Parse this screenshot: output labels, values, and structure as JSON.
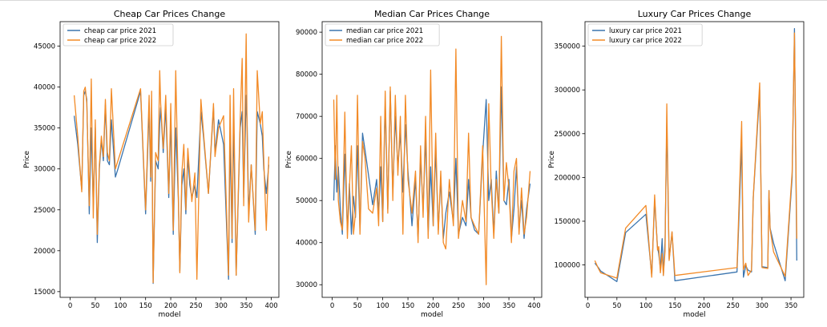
{
  "figure": {
    "colors": {
      "series_2021": "#3a74ae",
      "series_2022": "#f28a26",
      "axis": "#000000",
      "legend_border": "#cccccc"
    },
    "font": "DejaVu Sans"
  },
  "chart_data": [
    {
      "type": "line",
      "title": "Cheap Car Prices Change",
      "xlabel": "model",
      "ylabel": "Price",
      "xlim": [
        -20,
        415
      ],
      "ylim": [
        14300,
        48000
      ],
      "xticks": [
        0,
        50,
        100,
        150,
        200,
        250,
        300,
        350,
        400
      ],
      "yticks": [
        15000,
        20000,
        25000,
        30000,
        35000,
        40000,
        45000
      ],
      "legend": "top-left",
      "grid": false,
      "series": [
        {
          "name": "cheap car price 2021",
          "color": "#3a74ae",
          "x": [
            8,
            15,
            23,
            27,
            30,
            33,
            38,
            42,
            46,
            50,
            54,
            58,
            62,
            66,
            70,
            74,
            78,
            82,
            90,
            95,
            140,
            150,
            157,
            160,
            162,
            165,
            170,
            175,
            178,
            180,
            185,
            190,
            196,
            200,
            205,
            210,
            215,
            218,
            222,
            226,
            230,
            234,
            238,
            242,
            248,
            252,
            260,
            265,
            275,
            285,
            288,
            295,
            305,
            315,
            318,
            322,
            325,
            330,
            338,
            342,
            345,
            350,
            352,
            355,
            360,
            368,
            372,
            378,
            382,
            385,
            390,
            395
          ],
          "y": [
            36500,
            33000,
            27500,
            39000,
            39500,
            38500,
            24500,
            35000,
            25500,
            35000,
            21000,
            30000,
            33500,
            31000,
            37800,
            31000,
            30500,
            36000,
            29000,
            30000,
            39500,
            24500,
            37500,
            28500,
            38500,
            16000,
            31000,
            30000,
            35500,
            37500,
            32000,
            37500,
            26500,
            36000,
            22000,
            35000,
            26500,
            17500,
            28000,
            30000,
            24500,
            31500,
            28000,
            26500,
            28000,
            26500,
            37000,
            34000,
            27000,
            37500,
            32000,
            36000,
            33000,
            16500,
            34000,
            21000,
            36000,
            17000,
            35000,
            37000,
            26500,
            39000,
            35000,
            24500,
            30500,
            22000,
            37000,
            35500,
            34000,
            30000,
            27000,
            30500
          ]
        },
        {
          "name": "cheap car price 2022",
          "color": "#f28a26",
          "x": [
            8,
            15,
            23,
            27,
            30,
            33,
            38,
            42,
            46,
            50,
            54,
            58,
            62,
            66,
            70,
            74,
            78,
            82,
            90,
            95,
            140,
            150,
            157,
            160,
            162,
            165,
            170,
            175,
            178,
            180,
            185,
            190,
            196,
            200,
            205,
            210,
            215,
            218,
            222,
            226,
            230,
            234,
            238,
            242,
            248,
            252,
            260,
            265,
            275,
            285,
            288,
            295,
            305,
            315,
            318,
            322,
            325,
            330,
            338,
            342,
            345,
            350,
            352,
            355,
            360,
            368,
            372,
            378,
            382,
            385,
            390,
            395
          ],
          "y": [
            39000,
            34000,
            27200,
            39500,
            40000,
            38000,
            25500,
            41000,
            24000,
            36000,
            22000,
            30500,
            34000,
            31500,
            38500,
            32000,
            31000,
            39800,
            30000,
            31000,
            39800,
            25000,
            39000,
            29000,
            39500,
            16100,
            32000,
            31000,
            42000,
            38000,
            32500,
            39000,
            27000,
            38000,
            22500,
            42000,
            27000,
            17300,
            29500,
            33000,
            25000,
            32500,
            29000,
            26000,
            29500,
            16500,
            38500,
            34500,
            27000,
            38000,
            31500,
            35000,
            36500,
            17000,
            39000,
            21500,
            39800,
            17000,
            36000,
            43500,
            25500,
            46500,
            33000,
            23500,
            30500,
            22500,
            42000,
            35500,
            37000,
            31000,
            22500,
            31500
          ]
        }
      ]
    },
    {
      "type": "line",
      "title": "Median Car Prices Change",
      "xlabel": "model",
      "ylabel": "Price",
      "xlim": [
        -20,
        415
      ],
      "ylim": [
        27000,
        92500
      ],
      "xticks": [
        0,
        50,
        100,
        150,
        200,
        250,
        300,
        350,
        400
      ],
      "yticks": [
        30000,
        40000,
        50000,
        60000,
        70000,
        80000,
        90000
      ],
      "legend": "top-left",
      "grid": false,
      "series": [
        {
          "name": "median car price 2021",
          "color": "#3a74ae",
          "x": [
            3,
            6,
            9,
            12,
            16,
            20,
            25,
            30,
            34,
            38,
            42,
            46,
            50,
            55,
            60,
            65,
            72,
            80,
            88,
            92,
            96,
            100,
            105,
            110,
            115,
            120,
            125,
            130,
            135,
            140,
            145,
            150,
            158,
            165,
            170,
            175,
            180,
            185,
            190,
            195,
            200,
            205,
            210,
            215,
            220,
            225,
            232,
            240,
            245,
            250,
            258,
            265,
            270,
            275,
            282,
            290,
            298,
            305,
            310,
            315,
            320,
            325,
            330,
            335,
            340,
            345,
            350,
            355,
            360,
            365,
            370,
            375,
            380,
            385,
            392
          ],
          "y": [
            50000,
            63000,
            52000,
            58000,
            48000,
            42000,
            61000,
            43000,
            54000,
            42000,
            51000,
            46000,
            63000,
            43000,
            66000,
            62000,
            56000,
            49000,
            55000,
            47000,
            58000,
            45000,
            73000,
            48000,
            76000,
            52000,
            70000,
            58000,
            66000,
            52000,
            68000,
            57000,
            44000,
            55000,
            41000,
            60000,
            48000,
            65000,
            42000,
            58000,
            44000,
            62000,
            43000,
            55000,
            41000,
            47000,
            52000,
            45000,
            60000,
            42000,
            46000,
            44000,
            55000,
            46000,
            43000,
            42000,
            61000,
            74000,
            50000,
            55000,
            42000,
            57000,
            47000,
            77000,
            50000,
            49000,
            55000,
            41000,
            48000,
            58000,
            43000,
            50000,
            41000,
            48000,
            54000
          ]
        },
        {
          "name": "median car price 2022",
          "color": "#f28a26",
          "x": [
            3,
            6,
            9,
            12,
            16,
            20,
            25,
            30,
            34,
            38,
            42,
            46,
            50,
            55,
            60,
            65,
            72,
            80,
            88,
            92,
            96,
            100,
            105,
            110,
            115,
            120,
            125,
            130,
            135,
            140,
            145,
            150,
            158,
            165,
            170,
            175,
            180,
            185,
            190,
            195,
            200,
            205,
            210,
            215,
            220,
            225,
            232,
            240,
            245,
            250,
            258,
            265,
            270,
            275,
            282,
            290,
            298,
            305,
            310,
            315,
            320,
            325,
            330,
            335,
            340,
            345,
            350,
            355,
            360,
            365,
            370,
            375,
            380,
            385,
            392
          ],
          "y": [
            74000,
            55000,
            75000,
            50000,
            45000,
            43000,
            71000,
            41000,
            53000,
            63000,
            42000,
            47000,
            75000,
            42000,
            64000,
            60000,
            48000,
            47000,
            53000,
            44000,
            70000,
            45000,
            76000,
            47000,
            77000,
            50000,
            75000,
            56000,
            70000,
            42000,
            75000,
            55000,
            47000,
            57000,
            40000,
            63000,
            46000,
            70000,
            41000,
            81000,
            44000,
            66000,
            42000,
            57000,
            40000,
            38500,
            55000,
            44000,
            86000,
            41000,
            50000,
            45000,
            66000,
            46000,
            44000,
            42000,
            63000,
            30000,
            73000,
            53000,
            41000,
            55000,
            47000,
            89000,
            50000,
            59000,
            53000,
            40000,
            57000,
            60000,
            42000,
            53000,
            42000,
            46000,
            57000
          ]
        }
      ]
    },
    {
      "type": "line",
      "title": "Luxury Car Prices Change",
      "xlabel": "model",
      "ylabel": "Price",
      "xlim": [
        -5,
        372
      ],
      "ylim": [
        63000,
        378000
      ],
      "xticks": [
        0,
        50,
        100,
        150,
        200,
        250,
        300,
        350
      ],
      "yticks": [
        100000,
        150000,
        200000,
        250000,
        300000,
        350000
      ],
      "legend": "top-left",
      "grid": false,
      "series": [
        {
          "name": "luxury car price 2021",
          "color": "#3a74ae",
          "x": [
            12,
            18,
            22,
            50,
            65,
            100,
            110,
            115,
            120,
            122,
            125,
            128,
            130,
            133,
            136,
            140,
            145,
            150,
            257,
            265,
            268,
            272,
            276,
            282,
            285,
            296,
            300,
            310,
            312,
            314,
            320,
            340,
            352,
            356,
            360
          ],
          "y": [
            102000,
            97000,
            93000,
            81000,
            137000,
            158000,
            88000,
            174000,
            120000,
            113000,
            96000,
            130000,
            88000,
            127000,
            262000,
            107000,
            137000,
            82000,
            92000,
            240000,
            86000,
            99000,
            94000,
            92000,
            177000,
            300000,
            98000,
            97000,
            185000,
            142000,
            125000,
            82000,
            200000,
            370000,
            105000
          ]
        },
        {
          "name": "luxury car price 2022",
          "color": "#f28a26",
          "x": [
            12,
            18,
            22,
            50,
            65,
            100,
            110,
            115,
            120,
            122,
            125,
            128,
            130,
            133,
            136,
            140,
            145,
            150,
            257,
            265,
            268,
            272,
            276,
            282,
            285,
            296,
            300,
            310,
            312,
            314,
            320,
            340,
            352,
            356,
            360
          ],
          "y": [
            105000,
            96000,
            91000,
            85000,
            142000,
            168000,
            86000,
            180000,
            117000,
            121000,
            91000,
            113000,
            88000,
            116000,
            284000,
            105000,
            138000,
            88000,
            97000,
            264000,
            95000,
            102000,
            88000,
            94000,
            178000,
            308000,
            97000,
            96000,
            185000,
            141000,
            115000,
            87000,
            206000,
            365000,
            130000
          ]
        }
      ]
    }
  ]
}
